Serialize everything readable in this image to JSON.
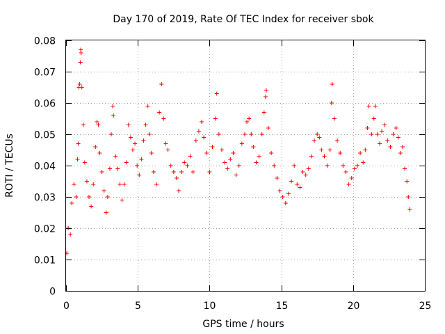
{
  "chart_data": {
    "type": "scatter",
    "title": "Day 170 of 2019, Rate Of TEC Index for receiver sbok",
    "xlabel": "GPS time / hours",
    "ylabel": "ROTI / TECUs",
    "xlim": [
      0,
      25
    ],
    "ylim": [
      0,
      0.08
    ],
    "grid": true,
    "marker": "+",
    "color": "#ff0000",
    "x_ticks": [
      0,
      5,
      10,
      15,
      20,
      25
    ],
    "x_tick_labels": [
      "0",
      "5",
      "10",
      "15",
      "20",
      "25"
    ],
    "y_ticks": [
      0,
      0.01,
      0.02,
      0.03,
      0.04,
      0.05,
      0.06,
      0.07,
      0.08
    ],
    "y_tick_labels": [
      "0",
      "0.01",
      "0.02",
      "0.03",
      "0.04",
      "0.05",
      "0.06",
      "0.07",
      "0.08"
    ],
    "series": [
      {
        "name": "ROTI",
        "points": [
          [
            0.05,
            0.012
          ],
          [
            0.15,
            0.02
          ],
          [
            0.3,
            0.018
          ],
          [
            0.4,
            0.028
          ],
          [
            0.55,
            0.034
          ],
          [
            0.7,
            0.03
          ],
          [
            0.8,
            0.042
          ],
          [
            0.85,
            0.047
          ],
          [
            0.9,
            0.065
          ],
          [
            0.95,
            0.066
          ],
          [
            1.0,
            0.073
          ],
          [
            1.02,
            0.077
          ],
          [
            1.05,
            0.076
          ],
          [
            1.1,
            0.065
          ],
          [
            1.2,
            0.053
          ],
          [
            1.3,
            0.041
          ],
          [
            1.45,
            0.035
          ],
          [
            1.6,
            0.03
          ],
          [
            1.75,
            0.027
          ],
          [
            1.9,
            0.034
          ],
          [
            2.05,
            0.046
          ],
          [
            2.15,
            0.054
          ],
          [
            2.25,
            0.053
          ],
          [
            2.35,
            0.044
          ],
          [
            2.5,
            0.038
          ],
          [
            2.65,
            0.032
          ],
          [
            2.8,
            0.025
          ],
          [
            2.9,
            0.03
          ],
          [
            3.05,
            0.039
          ],
          [
            3.15,
            0.05
          ],
          [
            3.25,
            0.059
          ],
          [
            3.3,
            0.056
          ],
          [
            3.45,
            0.043
          ],
          [
            3.6,
            0.039
          ],
          [
            3.75,
            0.034
          ],
          [
            3.9,
            0.029
          ],
          [
            4.05,
            0.034
          ],
          [
            4.2,
            0.041
          ],
          [
            4.35,
            0.053
          ],
          [
            4.5,
            0.049
          ],
          [
            4.65,
            0.045
          ],
          [
            4.8,
            0.047
          ],
          [
            4.95,
            0.04
          ],
          [
            5.1,
            0.037
          ],
          [
            5.25,
            0.042
          ],
          [
            5.4,
            0.048
          ],
          [
            5.55,
            0.053
          ],
          [
            5.7,
            0.059
          ],
          [
            5.8,
            0.05
          ],
          [
            5.95,
            0.044
          ],
          [
            6.1,
            0.038
          ],
          [
            6.3,
            0.034
          ],
          [
            6.5,
            0.057
          ],
          [
            6.65,
            0.066
          ],
          [
            6.8,
            0.055
          ],
          [
            6.95,
            0.047
          ],
          [
            7.1,
            0.045
          ],
          [
            7.3,
            0.04
          ],
          [
            7.5,
            0.038
          ],
          [
            7.7,
            0.036
          ],
          [
            7.85,
            0.032
          ],
          [
            8.05,
            0.038
          ],
          [
            8.25,
            0.041
          ],
          [
            8.45,
            0.04
          ],
          [
            8.65,
            0.043
          ],
          [
            8.85,
            0.038
          ],
          [
            9.05,
            0.048
          ],
          [
            9.25,
            0.051
          ],
          [
            9.45,
            0.054
          ],
          [
            9.6,
            0.049
          ],
          [
            9.8,
            0.044
          ],
          [
            10.0,
            0.038
          ],
          [
            10.2,
            0.046
          ],
          [
            10.4,
            0.055
          ],
          [
            10.5,
            0.063
          ],
          [
            10.65,
            0.05
          ],
          [
            10.85,
            0.045
          ],
          [
            11.05,
            0.041
          ],
          [
            11.25,
            0.039
          ],
          [
            11.45,
            0.042
          ],
          [
            11.65,
            0.044
          ],
          [
            11.85,
            0.037
          ],
          [
            12.05,
            0.04
          ],
          [
            12.25,
            0.047
          ],
          [
            12.45,
            0.05
          ],
          [
            12.6,
            0.054
          ],
          [
            12.75,
            0.055
          ],
          [
            12.9,
            0.05
          ],
          [
            13.05,
            0.046
          ],
          [
            13.25,
            0.041
          ],
          [
            13.45,
            0.043
          ],
          [
            13.65,
            0.05
          ],
          [
            13.8,
            0.057
          ],
          [
            13.9,
            0.062
          ],
          [
            13.95,
            0.064
          ],
          [
            14.1,
            0.052
          ],
          [
            14.3,
            0.044
          ],
          [
            14.5,
            0.04
          ],
          [
            14.7,
            0.036
          ],
          [
            14.9,
            0.032
          ],
          [
            15.1,
            0.03
          ],
          [
            15.3,
            0.028
          ],
          [
            15.5,
            0.031
          ],
          [
            15.7,
            0.035
          ],
          [
            15.9,
            0.04
          ],
          [
            16.1,
            0.034
          ],
          [
            16.3,
            0.033
          ],
          [
            16.5,
            0.038
          ],
          [
            16.7,
            0.037
          ],
          [
            16.9,
            0.039
          ],
          [
            17.1,
            0.043
          ],
          [
            17.3,
            0.048
          ],
          [
            17.5,
            0.05
          ],
          [
            17.65,
            0.049
          ],
          [
            17.8,
            0.045
          ],
          [
            18.0,
            0.043
          ],
          [
            18.2,
            0.04
          ],
          [
            18.4,
            0.045
          ],
          [
            18.5,
            0.06
          ],
          [
            18.55,
            0.066
          ],
          [
            18.7,
            0.055
          ],
          [
            18.9,
            0.048
          ],
          [
            19.1,
            0.044
          ],
          [
            19.3,
            0.04
          ],
          [
            19.5,
            0.038
          ],
          [
            19.7,
            0.034
          ],
          [
            19.9,
            0.036
          ],
          [
            20.1,
            0.039
          ],
          [
            20.3,
            0.04
          ],
          [
            20.5,
            0.044
          ],
          [
            20.7,
            0.041
          ],
          [
            20.85,
            0.045
          ],
          [
            21.0,
            0.052
          ],
          [
            21.1,
            0.059
          ],
          [
            21.3,
            0.05
          ],
          [
            21.45,
            0.055
          ],
          [
            21.55,
            0.059
          ],
          [
            21.7,
            0.05
          ],
          [
            21.85,
            0.047
          ],
          [
            22.0,
            0.051
          ],
          [
            22.2,
            0.053
          ],
          [
            22.4,
            0.048
          ],
          [
            22.6,
            0.046
          ],
          [
            22.8,
            0.05
          ],
          [
            23.0,
            0.052
          ],
          [
            23.15,
            0.049
          ],
          [
            23.3,
            0.044
          ],
          [
            23.45,
            0.046
          ],
          [
            23.6,
            0.039
          ],
          [
            23.75,
            0.035
          ],
          [
            23.85,
            0.03
          ],
          [
            23.95,
            0.026
          ]
        ]
      }
    ]
  }
}
